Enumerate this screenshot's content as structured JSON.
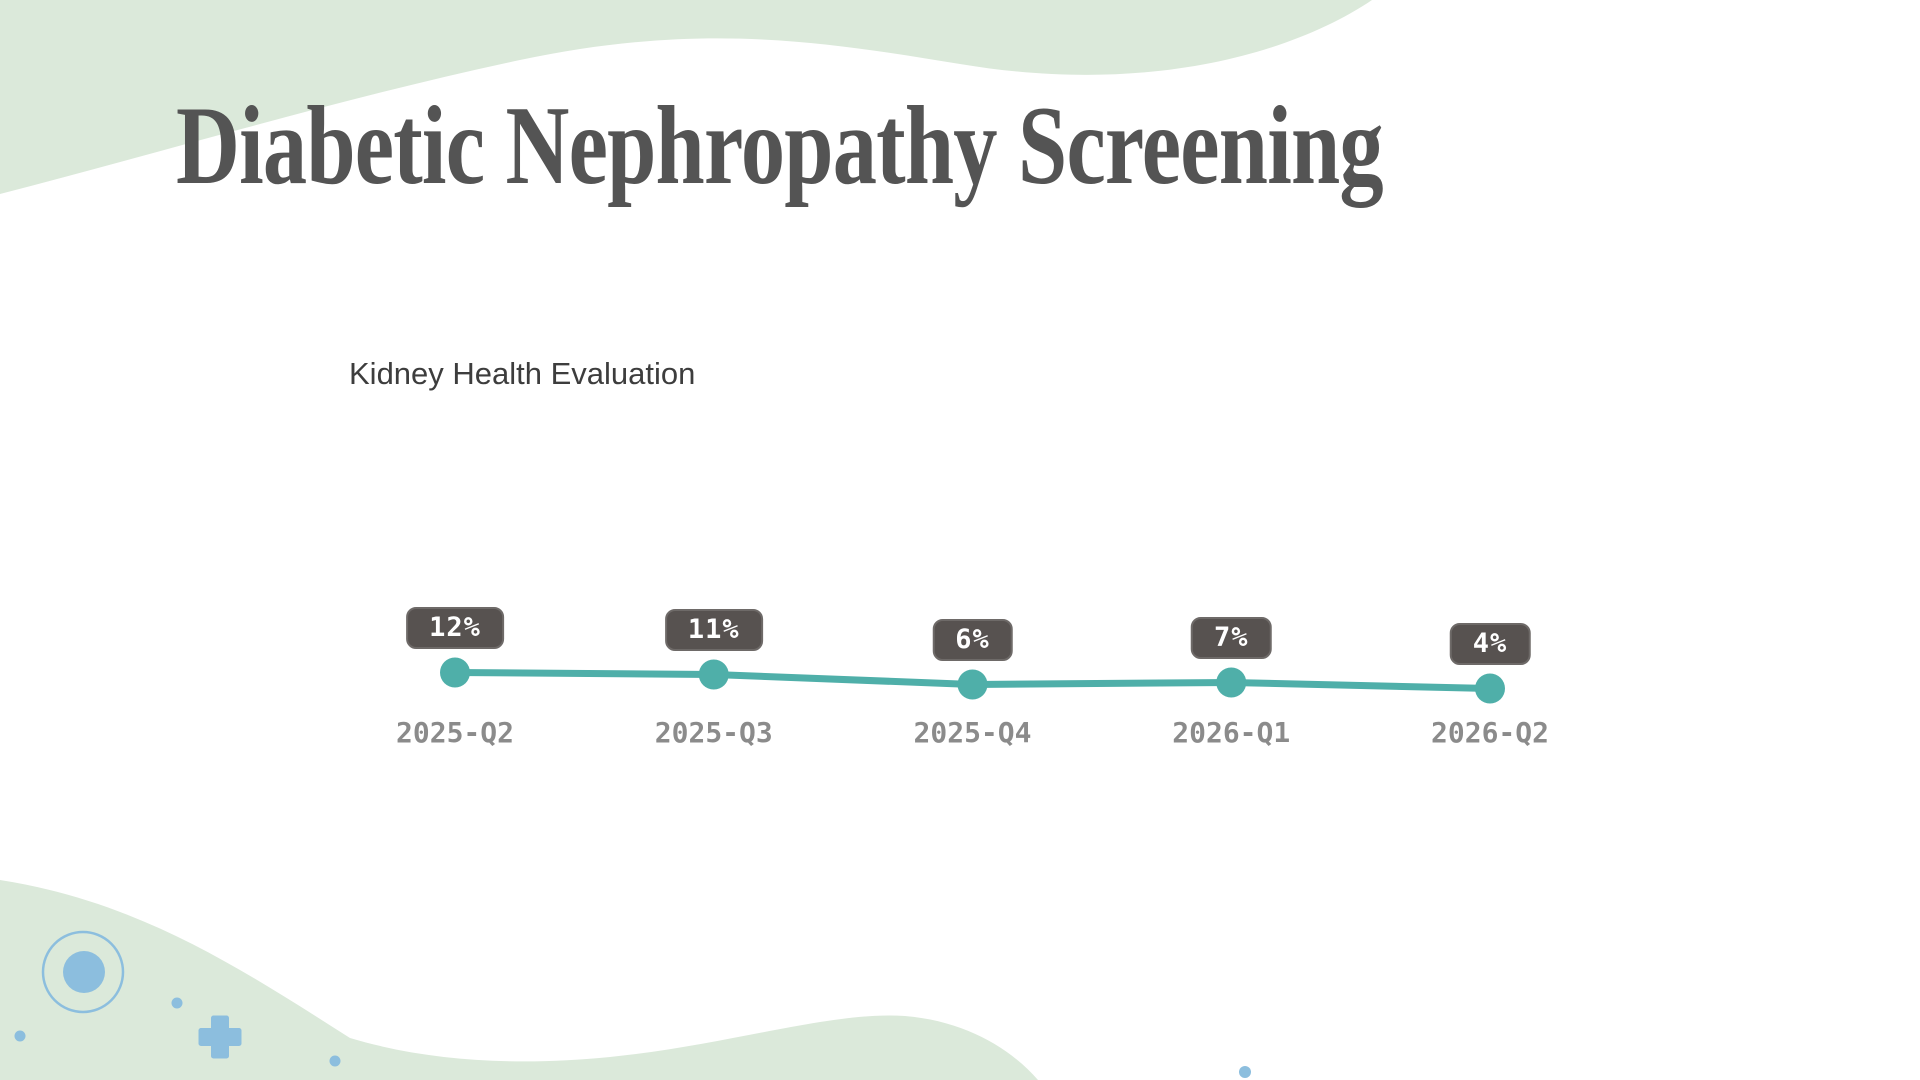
{
  "slide": {
    "title": "Diabetic Nephropathy Screening"
  },
  "chart_data": {
    "type": "line",
    "title": "Kidney Health Evaluation",
    "categories": [
      "2025-Q2",
      "2025-Q3",
      "2025-Q4",
      "2026-Q1",
      "2026-Q2"
    ],
    "values": [
      12,
      11,
      6,
      7,
      4
    ],
    "data_labels": [
      "12%",
      "11%",
      "6%",
      "7%",
      "4%"
    ],
    "unit": "%",
    "series": [
      {
        "name": "Kidney Health Evaluation",
        "values": [
          12,
          11,
          6,
          7,
          4
        ]
      }
    ],
    "marker": "circle",
    "label_style": "dark-rounded-badge",
    "y_axis": "hidden",
    "grid": false,
    "legend": "none"
  },
  "colors": {
    "background": "#ffffff",
    "mint_shape": "#dbe9da",
    "accent_blue": "#8cbede",
    "teal_line": "#4fafa9",
    "badge_bg": "#575250",
    "badge_border": "#6e6a68",
    "badge_text": "#ffffff",
    "title_text": "#545454",
    "chart_title_text": "#3d3d3d",
    "axis_label_text": "#8b8b8b"
  },
  "decorations": {
    "top_shape": "mint-wave-top",
    "bottom_shape": "mint-blob-bottom-left",
    "icons": [
      "ring-circle-icon",
      "filled-circle-icon",
      "dot-icon",
      "dot-icon",
      "dot-icon",
      "dot-icon",
      "plus-icon"
    ]
  }
}
